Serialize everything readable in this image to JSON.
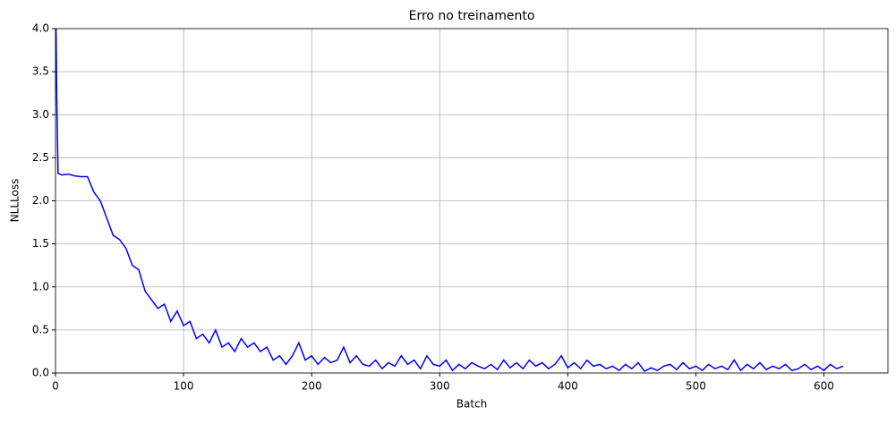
{
  "chart_data": {
    "type": "line",
    "title": "Erro no treinamento",
    "xlabel": "Batch",
    "ylabel": "NLLLoss",
    "x": [
      0,
      1,
      2,
      5,
      10,
      15,
      20,
      25,
      30,
      35,
      40,
      45,
      50,
      55,
      60,
      65,
      70,
      75,
      80,
      85,
      90,
      95,
      100,
      105,
      110,
      115,
      120,
      125,
      130,
      135,
      140,
      145,
      150,
      155,
      160,
      165,
      170,
      175,
      180,
      185,
      190,
      195,
      200,
      205,
      210,
      215,
      220,
      225,
      230,
      235,
      240,
      245,
      250,
      255,
      260,
      265,
      270,
      275,
      280,
      285,
      290,
      295,
      300,
      305,
      310,
      315,
      320,
      325,
      330,
      335,
      340,
      345,
      350,
      355,
      360,
      365,
      370,
      375,
      380,
      385,
      390,
      395,
      400,
      405,
      410,
      415,
      420,
      425,
      430,
      435,
      440,
      445,
      450,
      455,
      460,
      465,
      470,
      475,
      480,
      485,
      490,
      495,
      500,
      505,
      510,
      515,
      520,
      525,
      530,
      535,
      540,
      545,
      550,
      555,
      560,
      565,
      570,
      575,
      580,
      585,
      590,
      595,
      600,
      605,
      610,
      615
    ],
    "series": [
      {
        "name": "NLLLoss",
        "color": "#0000ff",
        "values": [
          4.6,
          3.2,
          2.32,
          2.3,
          2.31,
          2.29,
          2.28,
          2.28,
          2.1,
          2.0,
          1.8,
          1.6,
          1.55,
          1.45,
          1.25,
          1.2,
          0.95,
          0.85,
          0.75,
          0.8,
          0.6,
          0.72,
          0.55,
          0.6,
          0.4,
          0.45,
          0.35,
          0.5,
          0.3,
          0.35,
          0.25,
          0.4,
          0.3,
          0.35,
          0.25,
          0.3,
          0.15,
          0.2,
          0.1,
          0.2,
          0.35,
          0.15,
          0.2,
          0.1,
          0.18,
          0.12,
          0.15,
          0.3,
          0.12,
          0.2,
          0.1,
          0.08,
          0.15,
          0.05,
          0.12,
          0.08,
          0.2,
          0.1,
          0.15,
          0.05,
          0.2,
          0.1,
          0.08,
          0.15,
          0.03,
          0.1,
          0.05,
          0.12,
          0.08,
          0.05,
          0.1,
          0.04,
          0.15,
          0.06,
          0.12,
          0.05,
          0.15,
          0.08,
          0.12,
          0.05,
          0.1,
          0.2,
          0.06,
          0.12,
          0.05,
          0.15,
          0.08,
          0.1,
          0.05,
          0.08,
          0.03,
          0.1,
          0.05,
          0.12,
          0.02,
          0.06,
          0.03,
          0.08,
          0.1,
          0.04,
          0.12,
          0.05,
          0.08,
          0.03,
          0.1,
          0.05,
          0.08,
          0.04,
          0.15,
          0.03,
          0.1,
          0.05,
          0.12,
          0.04,
          0.08,
          0.05,
          0.1,
          0.03,
          0.05,
          0.1,
          0.04,
          0.08,
          0.03,
          0.1,
          0.05,
          0.08
        ]
      }
    ],
    "xlim": [
      0,
      650
    ],
    "ylim": [
      0,
      4
    ],
    "xticks": [
      0,
      100,
      200,
      300,
      400,
      500,
      600
    ],
    "yticks": [
      {
        "value": 0,
        "label": "0.0"
      },
      0.5,
      {
        "value": 1,
        "label": "1.0"
      },
      1.5,
      {
        "value": 2,
        "label": "2.0"
      },
      2.5,
      {
        "value": 3,
        "label": "3.0"
      },
      3.5,
      {
        "value": 4,
        "label": "4.0"
      }
    ],
    "grid": true
  }
}
